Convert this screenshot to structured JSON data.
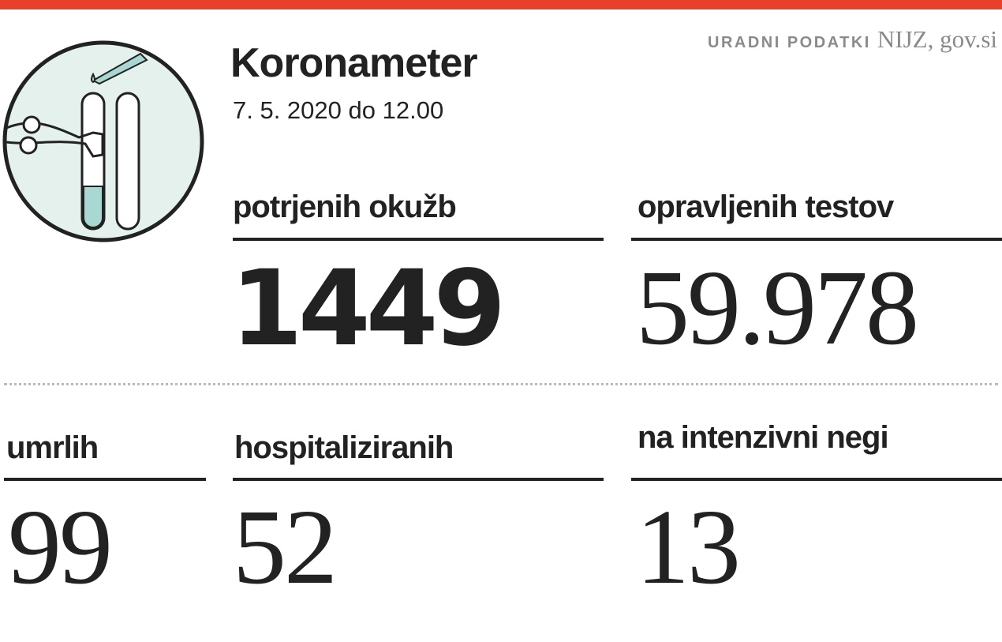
{
  "header": {
    "title": "Koronameter",
    "date": "7. 5. 2020 do 12.00",
    "source_label": "URADNI PODATKI",
    "source": "NIJZ, gov.si"
  },
  "stats": [
    {
      "label": "potrjenih okužb",
      "value": "1449"
    },
    {
      "label": "opravljenih testov",
      "value": "59.978"
    },
    {
      "label": "umrlih",
      "value": "99"
    },
    {
      "label": "hospitaliziranih",
      "value": "52"
    },
    {
      "label": "na intenzivni negi",
      "value": "13"
    }
  ]
}
